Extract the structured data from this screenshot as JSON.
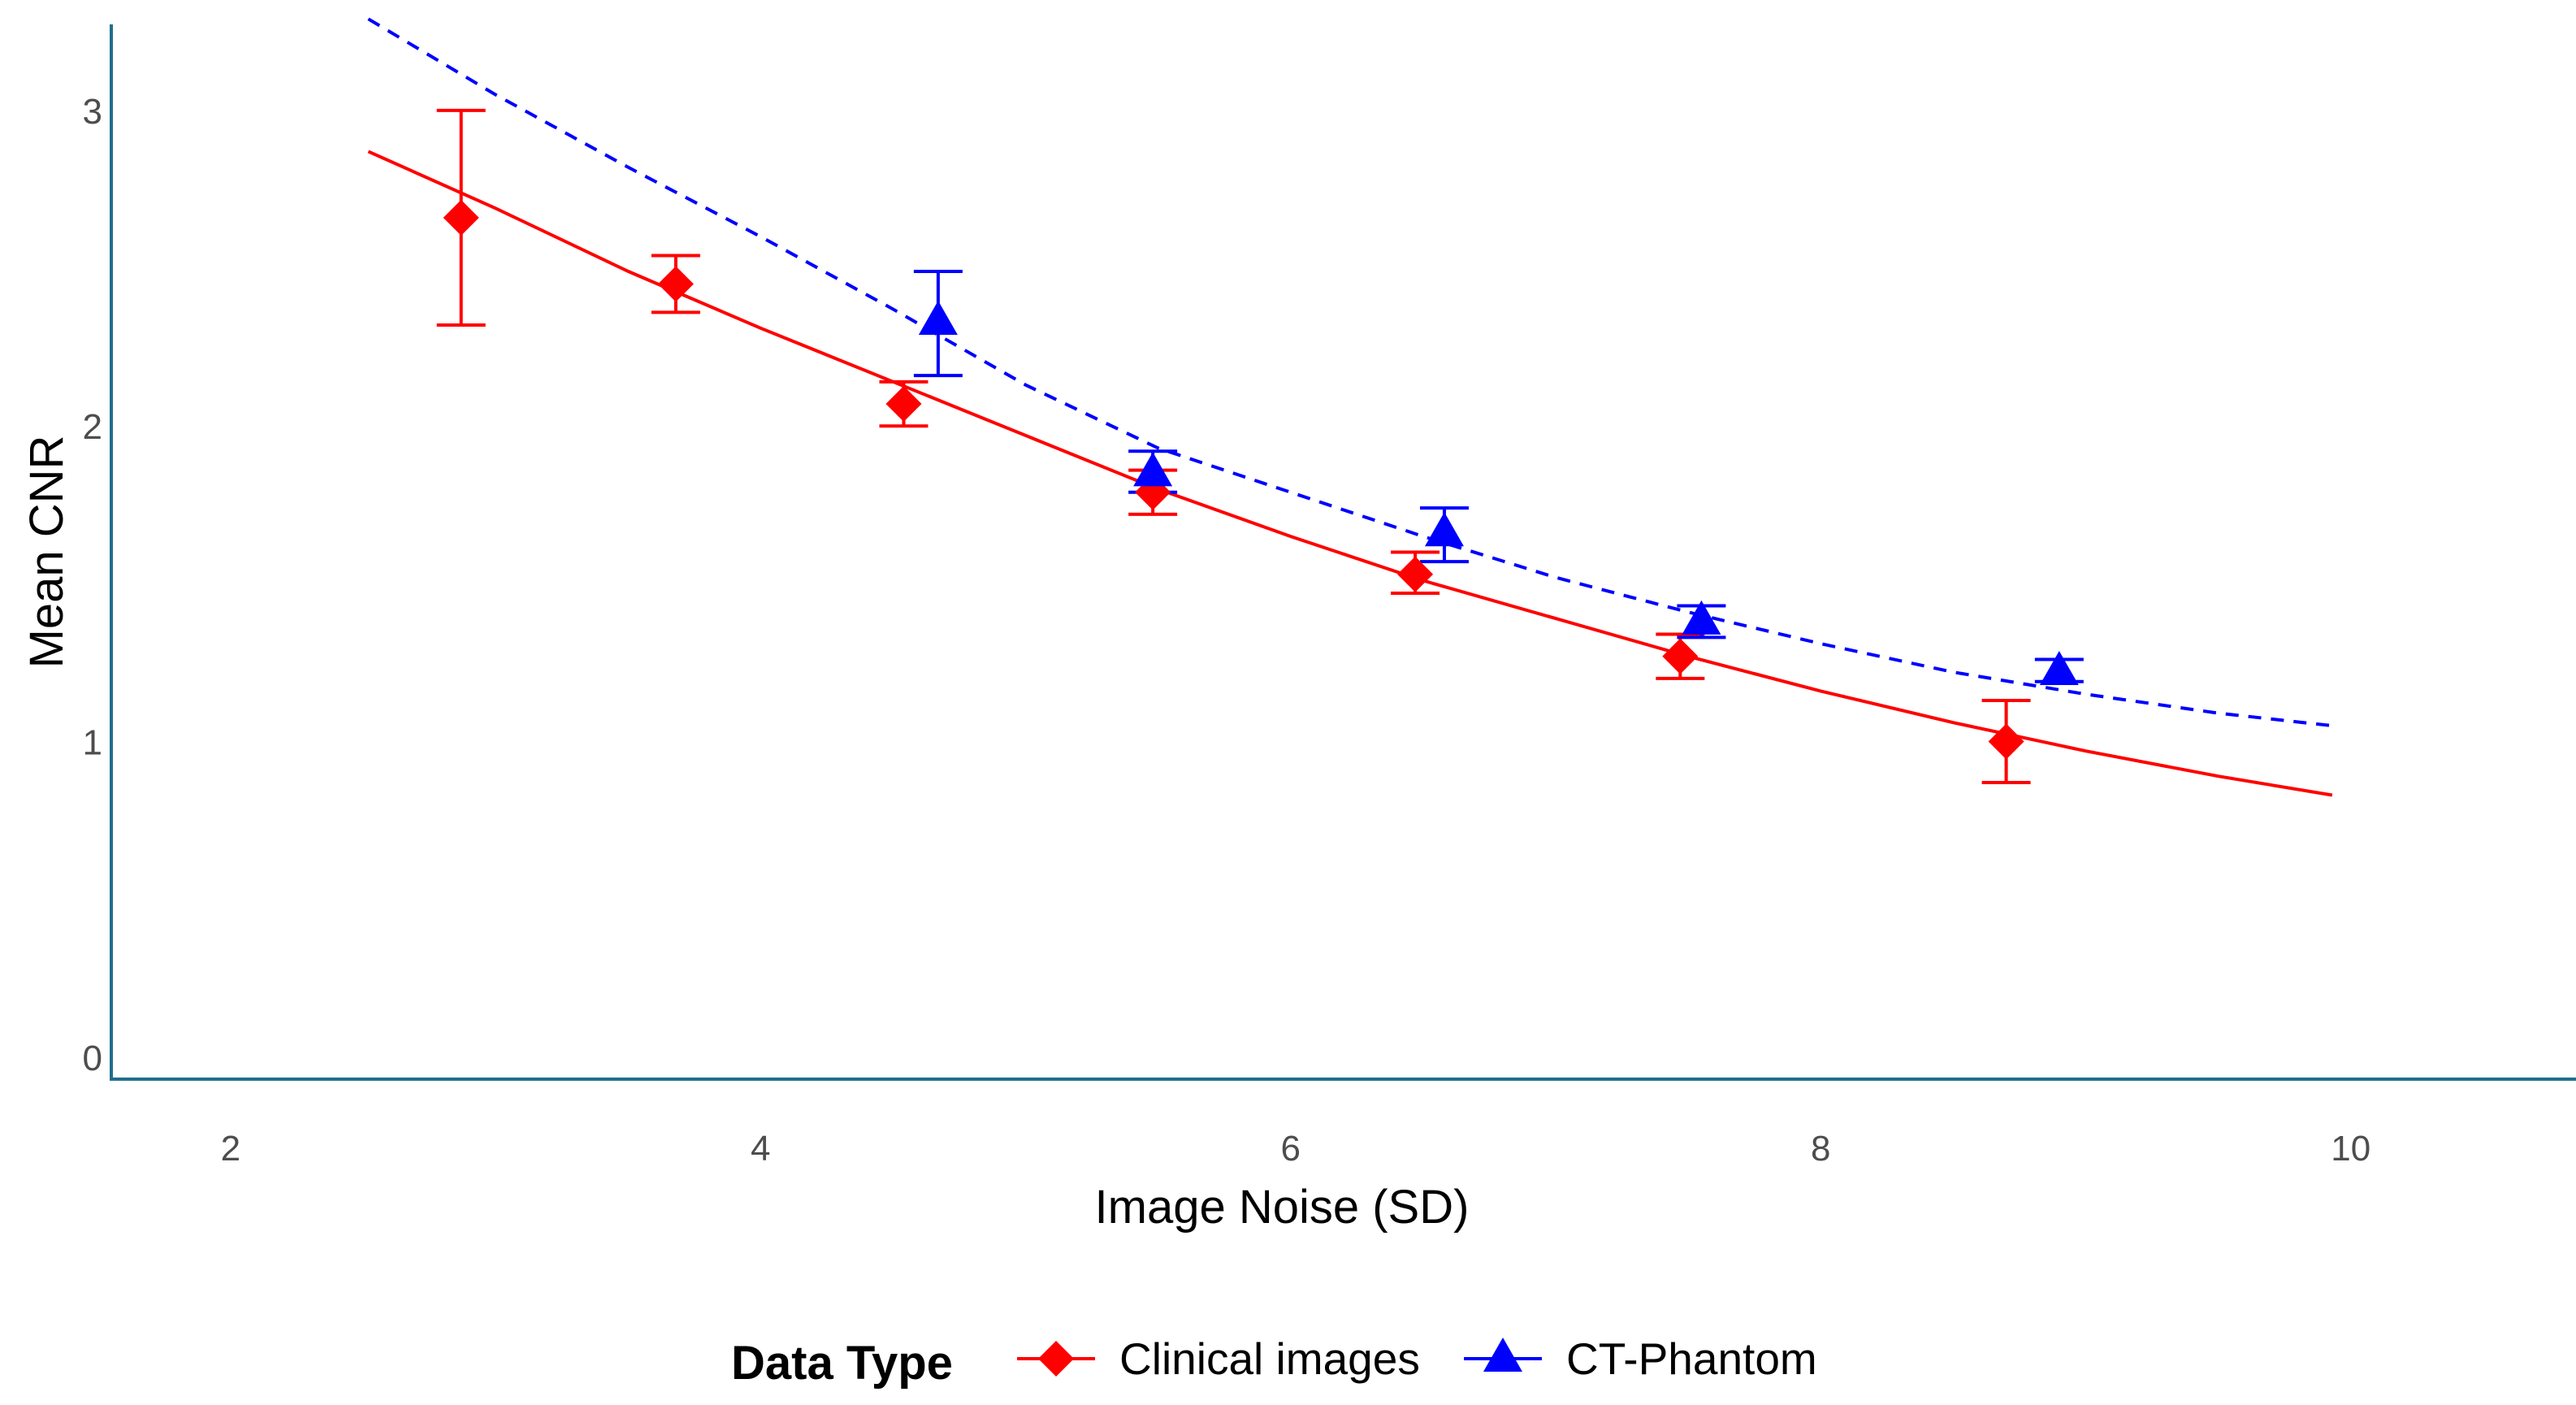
{
  "chart_data": {
    "type": "scatter",
    "title": "",
    "xlabel": "Image Noise (SD)",
    "ylabel": "Mean CNR",
    "xlim": [
      1.55,
      10.85
    ],
    "ylim": [
      -0.07,
      3.35
    ],
    "x_ticks": [
      2,
      4,
      6,
      8,
      10
    ],
    "y_ticks": [
      0,
      1,
      2,
      3
    ],
    "grid": false,
    "legend": {
      "position": "bottom",
      "title": "Data Type"
    },
    "series": [
      {
        "name": "Clinical images",
        "color": "#ff0000",
        "marker": "diamond",
        "points": [
          {
            "x": 2.87,
            "y": 2.66,
            "low": 2.32,
            "high": 3.0
          },
          {
            "x": 3.68,
            "y": 2.45,
            "low": 2.36,
            "high": 2.54
          },
          {
            "x": 4.54,
            "y": 2.07,
            "low": 2.0,
            "high": 2.14
          },
          {
            "x": 5.48,
            "y": 1.79,
            "low": 1.72,
            "high": 1.86
          },
          {
            "x": 6.47,
            "y": 1.53,
            "low": 1.47,
            "high": 1.6
          },
          {
            "x": 7.47,
            "y": 1.27,
            "low": 1.2,
            "high": 1.34
          },
          {
            "x": 8.7,
            "y": 1.0,
            "low": 0.87,
            "high": 1.13
          }
        ],
        "fit": {
          "style": "solid",
          "x": [
            2.52,
            3.0,
            3.5,
            4.0,
            4.5,
            5.0,
            5.5,
            6.0,
            6.5,
            7.0,
            7.5,
            8.0,
            8.5,
            9.0,
            9.5,
            9.93
          ],
          "y": [
            2.87,
            2.69,
            2.49,
            2.31,
            2.14,
            1.97,
            1.8,
            1.65,
            1.51,
            1.39,
            1.27,
            1.16,
            1.06,
            0.97,
            0.89,
            0.83
          ]
        }
      },
      {
        "name": "CT-Phantom",
        "color": "#0000ff",
        "marker": "triangle",
        "points": [
          {
            "x": 4.67,
            "y": 2.33,
            "low": 2.16,
            "high": 2.49
          },
          {
            "x": 5.48,
            "y": 1.85,
            "low": 1.79,
            "high": 1.92
          },
          {
            "x": 6.58,
            "y": 1.66,
            "low": 1.57,
            "high": 1.74
          },
          {
            "x": 7.55,
            "y": 1.38,
            "low": 1.33,
            "high": 1.43
          },
          {
            "x": 8.9,
            "y": 1.22,
            "low": 1.19,
            "high": 1.26
          }
        ],
        "fit": {
          "style": "dashed",
          "x": [
            2.52,
            3.0,
            3.5,
            4.0,
            4.5,
            5.0,
            5.5,
            6.0,
            6.5,
            7.0,
            7.5,
            8.0,
            8.5,
            9.0,
            9.5,
            9.93
          ],
          "y": [
            3.29,
            3.05,
            2.82,
            2.6,
            2.37,
            2.13,
            1.93,
            1.79,
            1.65,
            1.52,
            1.41,
            1.31,
            1.22,
            1.15,
            1.09,
            1.05
          ]
        }
      }
    ]
  }
}
